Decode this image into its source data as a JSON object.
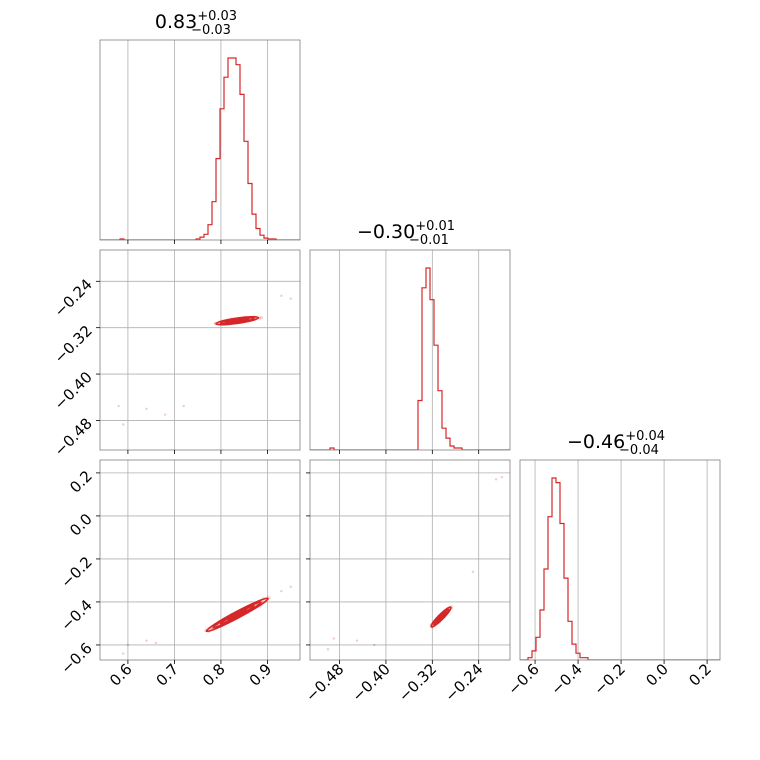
{
  "chart_data": {
    "type": "corner",
    "color": "#d62728",
    "parameters": [
      {
        "title": {
          "value": "0.83",
          "plus": "+0.03",
          "minus": "−0.03"
        },
        "range": [
          0.54,
          0.97
        ],
        "ticks": [
          0.6,
          0.7,
          0.8,
          0.9
        ],
        "tick_labels": [
          "0.6",
          "0.7",
          "0.8",
          "0.9"
        ],
        "hist": {
          "edges_start": 0.54,
          "bin_width": 0.0086,
          "counts": [
            0,
            0,
            0,
            0,
            0,
            1,
            0,
            0,
            0,
            0,
            0,
            0,
            0,
            0,
            0,
            0,
            0,
            0,
            0,
            0,
            0,
            0,
            0,
            0,
            1,
            3,
            6,
            16,
            40,
            85,
            137,
            170,
            190,
            190,
            183,
            152,
            103,
            59,
            27,
            12,
            5,
            2,
            1,
            1,
            0,
            0,
            0,
            0,
            0,
            0
          ]
        }
      },
      {
        "title": {
          "value": "−0.30",
          "plus": "+0.01",
          "minus": "−0.01"
        },
        "range": [
          -0.531,
          -0.186
        ],
        "ticks": [
          -0.48,
          -0.4,
          -0.32,
          -0.24
        ],
        "tick_labels": [
          "−0.48",
          "−0.40",
          "−0.32",
          "−0.24"
        ],
        "hist": {
          "edges_start": -0.531,
          "bin_width": 0.0069,
          "counts": [
            0,
            0,
            0,
            0,
            0,
            1,
            0,
            0,
            0,
            0,
            0,
            0,
            0,
            0,
            0,
            0,
            0,
            0,
            0,
            0,
            0,
            0,
            0,
            0,
            0,
            0,
            0,
            25,
            82,
            92,
            76,
            53,
            30,
            11,
            6,
            2,
            1,
            1,
            0,
            0,
            0,
            0,
            0,
            0,
            0,
            0,
            0,
            0,
            0,
            0
          ]
        }
      },
      {
        "title": {
          "value": "−0.46",
          "plus": "+0.04",
          "minus": "−0.04"
        },
        "range": [
          -0.67,
          0.26
        ],
        "ticks": [
          -0.6,
          -0.4,
          -0.2,
          0.0,
          0.2
        ],
        "tick_labels": [
          "−0.6",
          "−0.4",
          "−0.2",
          "0.0",
          "0.2"
        ],
        "hist": {
          "edges_start": -0.67,
          "bin_width": 0.0186,
          "counts": [
            0,
            0,
            1,
            4,
            10,
            22,
            40,
            63,
            80,
            78,
            60,
            36,
            17,
            7,
            3,
            1,
            1,
            0,
            0,
            0,
            0,
            0,
            0,
            0,
            0,
            0,
            0,
            0,
            0,
            0,
            0,
            0,
            0,
            0,
            0,
            0,
            0,
            0,
            0,
            0,
            0,
            0,
            0,
            0,
            0,
            0,
            0,
            0,
            0,
            0
          ]
        }
      }
    ],
    "pairs": [
      {
        "x": 0,
        "y": 1,
        "center": [
          0.835,
          -0.308
        ],
        "contours": [
          {
            "rx": 0.046,
            "ry": 0.0045,
            "angle_deg": 8
          },
          {
            "rx": 0.036,
            "ry": 0.0033,
            "angle_deg": 8
          },
          {
            "rx": 0.025,
            "ry": 0.0022,
            "angle_deg": 8
          },
          {
            "rx": 0.014,
            "ry": 0.0012,
            "angle_deg": 8
          }
        ],
        "outliers": [
          [
            0.58,
            -0.455
          ],
          [
            0.59,
            -0.487
          ],
          [
            0.64,
            -0.46
          ],
          [
            0.68,
            -0.47
          ],
          [
            0.72,
            -0.455
          ],
          [
            0.95,
            -0.27
          ],
          [
            0.93,
            -0.265
          ]
        ]
      },
      {
        "x": 0,
        "y": 2,
        "center": [
          0.835,
          -0.46
        ],
        "contours": [
          {
            "rx": 0.075,
            "ry": 0.015,
            "angle_deg": 28
          },
          {
            "rx": 0.058,
            "ry": 0.011,
            "angle_deg": 28
          },
          {
            "rx": 0.041,
            "ry": 0.0075,
            "angle_deg": 28
          },
          {
            "rx": 0.022,
            "ry": 0.004,
            "angle_deg": 28
          }
        ],
        "outliers": [
          [
            0.59,
            -0.64
          ],
          [
            0.6,
            -0.6
          ],
          [
            0.64,
            -0.58
          ],
          [
            0.66,
            -0.59
          ],
          [
            0.93,
            -0.35
          ],
          [
            0.95,
            -0.33
          ]
        ]
      },
      {
        "x": 1,
        "y": 2,
        "center": [
          -0.305,
          -0.47
        ],
        "contours": [
          {
            "rx": 0.024,
            "ry": 0.012,
            "angle_deg": 45
          },
          {
            "rx": 0.018,
            "ry": 0.009,
            "angle_deg": 45
          },
          {
            "rx": 0.012,
            "ry": 0.006,
            "angle_deg": 45
          },
          {
            "rx": 0.006,
            "ry": 0.003,
            "angle_deg": 45
          }
        ],
        "outliers": [
          [
            -0.49,
            -0.57
          ],
          [
            -0.5,
            -0.62
          ],
          [
            -0.45,
            -0.58
          ],
          [
            -0.42,
            -0.6
          ],
          [
            -0.21,
            0.17
          ],
          [
            -0.2,
            0.18
          ],
          [
            -0.25,
            -0.26
          ]
        ]
      }
    ],
    "grid": true,
    "legend": "none"
  }
}
